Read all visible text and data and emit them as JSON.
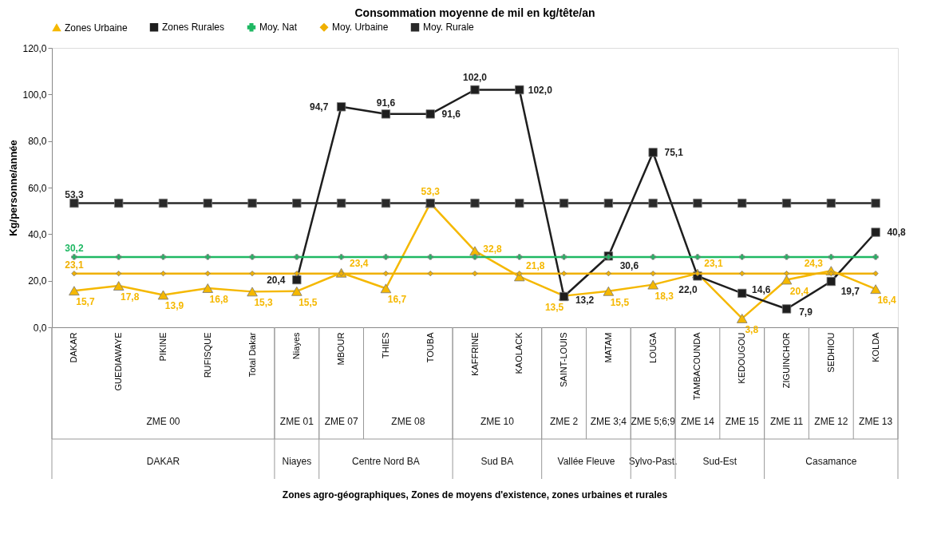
{
  "chart_data": {
    "type": "line",
    "title": "Consommation moyenne de mil en kg/tête/an",
    "ylabel": "Kg/personne/année",
    "categories": [
      "DAKAR",
      "GUEDIAWAYE",
      "PIKINE",
      "RUFISQUE",
      "Total Dakar",
      "Niayes",
      "MBOUR",
      "THIES",
      "TOUBA",
      "KAFFRINE",
      "KAOLACK",
      "SAINT-LOUIS",
      "MATAM",
      "LOUGA",
      "TAMBACOUNDA",
      "KEDOUGOU",
      "ZIGUINCHOR",
      "SEDHIOU",
      "KOLDA"
    ],
    "series": [
      {
        "name": "Zones Urbaine",
        "type": "line",
        "marker": "triangle",
        "color": "#f5b800",
        "values": [
          15.7,
          17.8,
          13.9,
          16.8,
          15.3,
          15.5,
          23.4,
          16.7,
          53.3,
          32.8,
          21.8,
          13.5,
          15.5,
          18.3,
          23.1,
          3.8,
          20.4,
          24.3,
          16.4
        ],
        "value_labels": [
          "15,7",
          "17,8",
          "13,9",
          "16,8",
          "15,3",
          "15,5",
          "23,4",
          "16,7",
          "53,3",
          "32,8",
          "21,8",
          "13,5",
          "15,5",
          "18,3",
          "23,1",
          "3,8",
          "20,4",
          "24,3",
          "16,4"
        ]
      },
      {
        "name": "Zones Rurales",
        "type": "line",
        "marker": "square",
        "color": "#1e1e1e",
        "values": [
          null,
          null,
          null,
          null,
          null,
          20.4,
          94.7,
          91.6,
          91.6,
          102.0,
          102.0,
          13.2,
          30.6,
          75.1,
          22.0,
          14.6,
          7.9,
          19.7,
          40.8
        ],
        "value_labels": [
          null,
          null,
          null,
          null,
          null,
          "20,4",
          "94,7",
          "91,6",
          "91,6",
          "102,0",
          "102,0",
          "13,2",
          "30,6",
          "75,1",
          "22,0",
          "14,6",
          "7,9",
          "19,7",
          "40,8"
        ]
      },
      {
        "name": "Moy. Nat",
        "type": "line",
        "marker": "cross",
        "color": "#1fb863",
        "values": [
          30.2,
          30.2,
          30.2,
          30.2,
          30.2,
          30.2,
          30.2,
          30.2,
          30.2,
          30.2,
          30.2,
          30.2,
          30.2,
          30.2,
          30.2,
          30.2,
          30.2,
          30.2,
          30.2
        ],
        "value_labels": [
          "30,2",
          null,
          null,
          null,
          null,
          null,
          null,
          null,
          null,
          null,
          null,
          null,
          null,
          null,
          null,
          null,
          null,
          null,
          null
        ]
      },
      {
        "name": "Moy. Urbaine",
        "type": "line",
        "marker": "diamond",
        "color": "#f0b000",
        "values": [
          23.1,
          23.1,
          23.1,
          23.1,
          23.1,
          23.1,
          23.1,
          23.1,
          23.1,
          23.1,
          23.1,
          23.1,
          23.1,
          23.1,
          23.1,
          23.1,
          23.1,
          23.1,
          23.1
        ],
        "value_labels": [
          "23,1",
          null,
          null,
          null,
          null,
          null,
          null,
          null,
          null,
          null,
          null,
          null,
          null,
          null,
          null,
          null,
          null,
          null,
          null
        ]
      },
      {
        "name": "Moy. Rurale",
        "type": "line",
        "marker": "square",
        "color": "#2a2a2a",
        "values": [
          53.3,
          53.3,
          53.3,
          53.3,
          53.3,
          53.3,
          53.3,
          53.3,
          53.3,
          53.3,
          53.3,
          53.3,
          53.3,
          53.3,
          53.3,
          53.3,
          53.3,
          53.3,
          53.3
        ],
        "value_labels": [
          "53,3",
          null,
          null,
          null,
          null,
          null,
          null,
          null,
          null,
          null,
          null,
          null,
          null,
          null,
          null,
          null,
          null,
          null,
          null
        ]
      }
    ],
    "ylim": [
      0,
      120
    ],
    "yticks": [
      {
        "value": 0,
        "label": "0,0"
      },
      {
        "value": 20,
        "label": "20,0"
      },
      {
        "value": 40,
        "label": "40,0"
      },
      {
        "value": 60,
        "label": "60,0"
      },
      {
        "value": 80,
        "label": "80,0"
      },
      {
        "value": 100,
        "label": "100,0"
      },
      {
        "value": 120,
        "label": "120,0"
      }
    ],
    "grid": false,
    "legend": "top",
    "annotations": [
      "ZME 00",
      "ZME 01",
      "ZME 07",
      "ZME 08",
      "ZME 10",
      "ZME 2",
      "ZME 3;4",
      "ZME 5;6;9",
      "ZME 14",
      "ZME 15",
      "ZME 11",
      "ZME 12",
      "ZME 13",
      "DAKAR",
      "Niayes",
      "Centre Nord BA",
      "Sud BA",
      "Vallée Fleuve",
      "Sylvo-Past.",
      "Sud-Est",
      "Casamance",
      "Zones agro-géographiques, Zones de moyens d'existence, zones urbaines et rurales"
    ]
  }
}
